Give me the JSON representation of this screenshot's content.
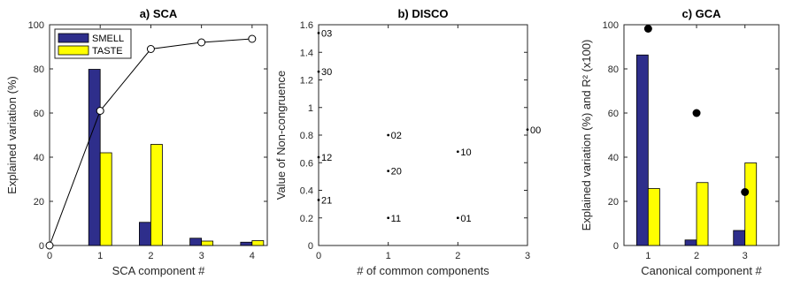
{
  "chart_data": [
    {
      "id": "sca",
      "type": "bar",
      "title": "a) SCA",
      "xlabel": "SCA component #",
      "ylabel": "Explained variation (%)",
      "xlim": [
        0,
        4.3
      ],
      "ylim": [
        0,
        100
      ],
      "x_ticks": [
        "0",
        "1",
        "2",
        "3",
        "4"
      ],
      "y_ticks": [
        "0",
        "20",
        "40",
        "60",
        "80",
        "100"
      ],
      "categories": [
        "1",
        "2",
        "3",
        "4"
      ],
      "legend": {
        "position": "top-left"
      },
      "series": [
        {
          "name": "SMELL",
          "color": "#2e2e8b",
          "values": [
            79.8,
            10.5,
            3.3,
            1.5
          ]
        },
        {
          "name": "TASTE",
          "color": "#ffff00",
          "values": [
            42,
            45.8,
            2.0,
            2.2
          ]
        }
      ],
      "line": {
        "marker": "open-circle",
        "x": [
          0,
          1,
          2,
          3,
          4
        ],
        "y": [
          0,
          61,
          89,
          92,
          93.6
        ]
      }
    },
    {
      "id": "disco",
      "type": "scatter",
      "title": "b) DISCO",
      "xlabel": "# of common components",
      "ylabel": "Value of Non-congruence",
      "xlim": [
        0,
        3
      ],
      "ylim": [
        0,
        1.6
      ],
      "x_ticks": [
        "0",
        "1",
        "2",
        "3"
      ],
      "y_ticks": [
        "0",
        "0.2",
        "0.4",
        "0.6",
        "0.8",
        "1",
        "1.2",
        "1.4",
        "1.6"
      ],
      "points": [
        {
          "x": 0,
          "y": 1.54,
          "label": "03"
        },
        {
          "x": 0,
          "y": 1.26,
          "label": "30"
        },
        {
          "x": 0,
          "y": 0.64,
          "label": "12"
        },
        {
          "x": 0,
          "y": 0.33,
          "label": "21"
        },
        {
          "x": 1,
          "y": 0.8,
          "label": "02"
        },
        {
          "x": 1,
          "y": 0.54,
          "label": "20"
        },
        {
          "x": 1,
          "y": 0.2,
          "label": "11"
        },
        {
          "x": 2,
          "y": 0.68,
          "label": "10"
        },
        {
          "x": 2,
          "y": 0.2,
          "label": "01"
        },
        {
          "x": 3,
          "y": 0.84,
          "label": "00"
        }
      ]
    },
    {
      "id": "gca",
      "type": "bar",
      "title": "c) GCA",
      "xlabel": "Canonical component #",
      "ylabel": "Explained variation (%) and R² (x100)",
      "xlim": [
        0.5,
        3.7
      ],
      "ylim": [
        0,
        100
      ],
      "x_ticks": [
        "1",
        "2",
        "3"
      ],
      "y_ticks": [
        "0",
        "20",
        "40",
        "60",
        "80",
        "100"
      ],
      "categories": [
        "1",
        "2",
        "3"
      ],
      "series": [
        {
          "color": "#2e2e8b",
          "values": [
            86.3,
            2.5,
            6.8
          ]
        },
        {
          "color": "#ffff00",
          "values": [
            25.8,
            28.5,
            37.4
          ]
        }
      ],
      "markers": {
        "marker": "filled-circle",
        "x": [
          1,
          2,
          3
        ],
        "y": [
          98.2,
          60.0,
          24.2
        ]
      }
    }
  ]
}
